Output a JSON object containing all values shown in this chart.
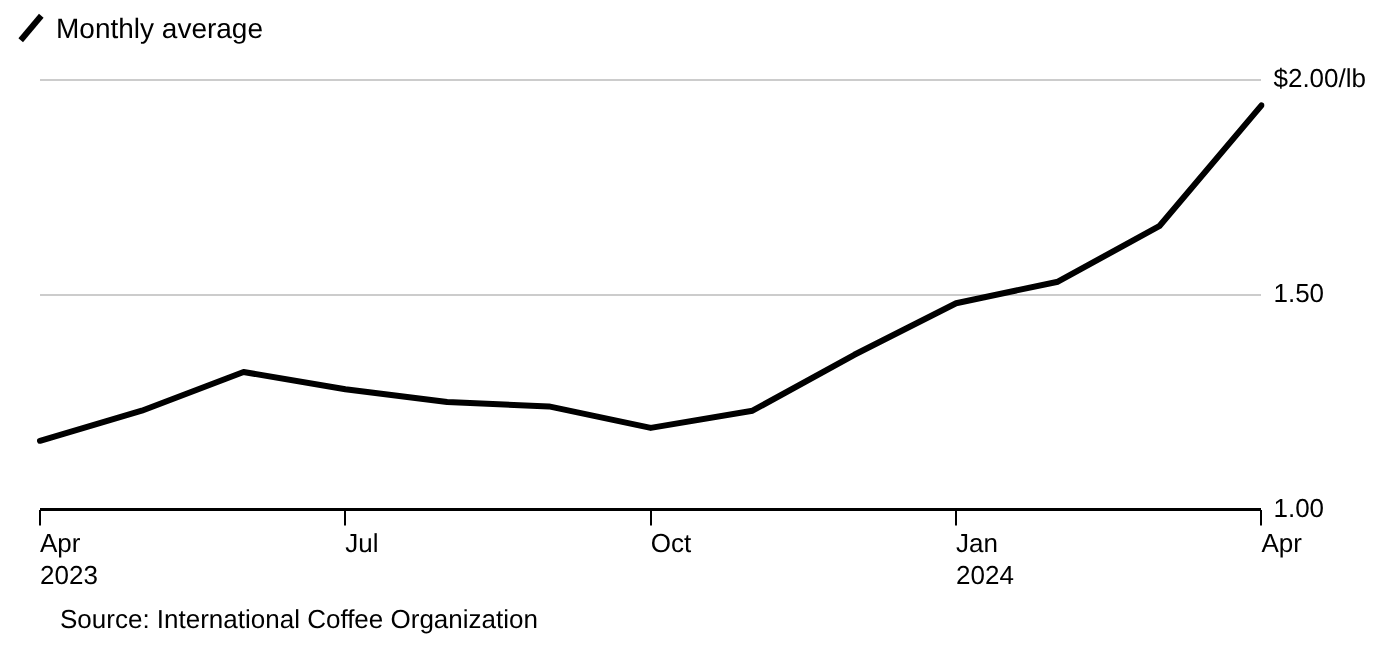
{
  "chart_data": {
    "type": "line",
    "categories": [
      "Apr 2023",
      null,
      null,
      "Jul",
      null,
      null,
      "Oct",
      null,
      null,
      "Jan 2024",
      null,
      null,
      "Apr"
    ],
    "series": [
      {
        "name": "Monthly average",
        "color": "#000000",
        "values": [
          1.16,
          1.23,
          1.32,
          1.28,
          1.25,
          1.24,
          1.19,
          1.23,
          1.36,
          1.48,
          1.53,
          1.66,
          1.94
        ]
      }
    ],
    "ylim": [
      1.0,
      2.0
    ],
    "yticks": [
      {
        "value": 1.0,
        "label": "1.00"
      },
      {
        "value": 1.5,
        "label": "1.50"
      },
      {
        "value": 2.0,
        "label": "$2.00/lb"
      }
    ],
    "grid": "y",
    "legend": "top left",
    "marker": "none",
    "line_style": "solid",
    "annotations": [
      "Source: International Coffee Organization"
    ]
  }
}
